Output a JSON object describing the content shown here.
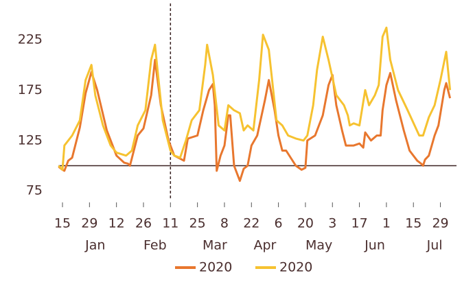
{
  "chart_data": {
    "type": "line",
    "series": [
      {
        "name": "2020",
        "color": "#e8772e",
        "x": [
          -2,
          0,
          1,
          3,
          5,
          9,
          12,
          15,
          18,
          23,
          28,
          32,
          34,
          35,
          39,
          42,
          46,
          48,
          51,
          55,
          58,
          61,
          63,
          65,
          70,
          73,
          76,
          78,
          79,
          80,
          82,
          84,
          86,
          87,
          89,
          92,
          94,
          96,
          98,
          101,
          105,
          107,
          110,
          112,
          114,
          116,
          121,
          124,
          126,
          127,
          131,
          135,
          138,
          140,
          142,
          145,
          147,
          151,
          154,
          156,
          157,
          160,
          163,
          165,
          166,
          168,
          170,
          173,
          177,
          180,
          184,
          186,
          187,
          188,
          190,
          193,
          195,
          198,
          199,
          201
        ],
        "values": [
          99,
          96,
          95,
          105,
          108,
          138,
          172,
          193,
          175,
          135,
          110,
          103,
          102,
          100,
          130,
          137,
          170,
          205,
          160,
          125,
          110,
          107,
          105,
          127,
          130,
          155,
          175,
          181,
          160,
          95,
          110,
          120,
          150,
          150,
          100,
          85,
          97,
          100,
          120,
          130,
          165,
          185,
          155,
          130,
          115,
          115,
          100,
          96,
          98,
          125,
          130,
          150,
          180,
          190,
          160,
          135,
          120,
          120,
          122,
          118,
          133,
          125,
          130,
          130,
          155,
          180,
          192,
          165,
          135,
          115,
          105,
          102,
          100,
          106,
          110,
          130,
          140,
          175,
          182,
          167
        ]
      },
      {
        "name": "2020",
        "color": "#f6c230",
        "x": [
          -2,
          0,
          1,
          5,
          9,
          12,
          15,
          17,
          21,
          25,
          28,
          33,
          36,
          39,
          43,
          46,
          48,
          49,
          52,
          56,
          58,
          61,
          64,
          67,
          71,
          74,
          75,
          78,
          81,
          84,
          86,
          89,
          92,
          94,
          96,
          99,
          102,
          104,
          107,
          111,
          114,
          117,
          121,
          125,
          127,
          130,
          132,
          135,
          138,
          142,
          146,
          148,
          149,
          151,
          154,
          157,
          159,
          162,
          164,
          166,
          168,
          170,
          174,
          179,
          185,
          187,
          190,
          193,
          196,
          199,
          201
        ],
        "values": [
          100,
          96,
          120,
          130,
          145,
          185,
          200,
          170,
          140,
          120,
          113,
          110,
          115,
          140,
          155,
          205,
          220,
          200,
          145,
          115,
          110,
          108,
          125,
          145,
          155,
          200,
          220,
          190,
          140,
          135,
          160,
          155,
          152,
          135,
          140,
          135,
          185,
          230,
          215,
          145,
          140,
          130,
          127,
          125,
          130,
          160,
          195,
          228,
          205,
          170,
          160,
          150,
          140,
          142,
          140,
          175,
          160,
          170,
          180,
          228,
          237,
          205,
          175,
          155,
          130,
          130,
          148,
          160,
          185,
          213,
          175
        ]
      }
    ],
    "xlim": [
      -2,
      201.5
    ],
    "xticks": [
      {
        "value": 0,
        "label": "15"
      },
      {
        "value": 14,
        "label": "29"
      },
      {
        "value": 28,
        "label": "12"
      },
      {
        "value": 42,
        "label": "26"
      },
      {
        "value": 56,
        "label": "11"
      },
      {
        "value": 70,
        "label": "25"
      },
      {
        "value": 84,
        "label": "8"
      },
      {
        "value": 98,
        "label": "22"
      },
      {
        "value": 112,
        "label": "6"
      },
      {
        "value": 126,
        "label": "20"
      },
      {
        "value": 140,
        "label": "3"
      },
      {
        "value": 154,
        "label": "17"
      },
      {
        "value": 168,
        "label": "1"
      },
      {
        "value": 182,
        "label": "15"
      },
      {
        "value": 196,
        "label": "29"
      }
    ],
    "month_ticks": [
      {
        "value": 17,
        "label": "Jan"
      },
      {
        "value": 48,
        "label": "Feb"
      },
      {
        "value": 79,
        "label": "Mar"
      },
      {
        "value": 105,
        "label": "Apr"
      },
      {
        "value": 133,
        "label": "May"
      },
      {
        "value": 162,
        "label": "Jun"
      },
      {
        "value": 193,
        "label": "Jul"
      }
    ],
    "ylim": [
      67,
      254
    ],
    "yticks": [
      75,
      125,
      175,
      225
    ],
    "reference_y": 100,
    "reference_x": 56,
    "grid": false
  }
}
